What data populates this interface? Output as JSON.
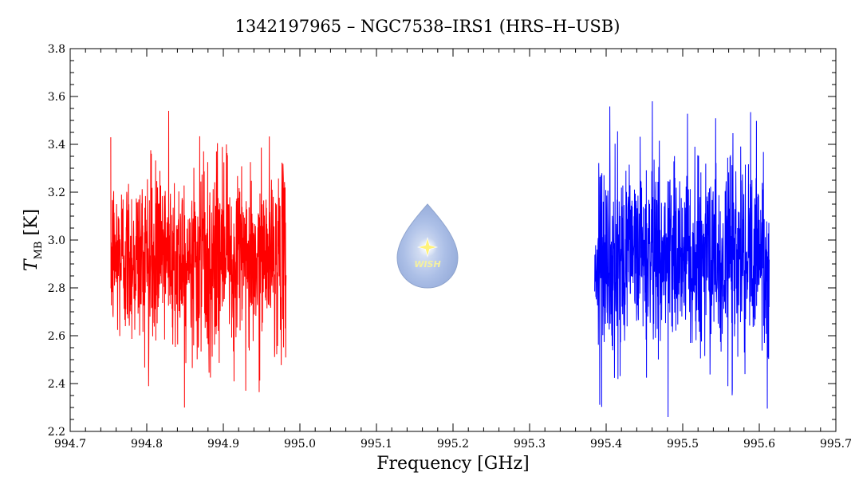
{
  "chart_data": {
    "type": "line",
    "title": "1342197965 – NGC7538–IRS1 (HRS–H–USB)",
    "xlabel": "Frequency [GHz]",
    "ylabel": {
      "main": "T",
      "sub": "MB",
      "unit": "[K]"
    },
    "xlim": [
      994.7,
      995.7
    ],
    "ylim": [
      2.2,
      3.8
    ],
    "xticks": [
      "994.7",
      "994.8",
      "994.9",
      "995.0",
      "995.1",
      "995.2",
      "995.3",
      "995.4",
      "995.5",
      "995.6",
      "995.7"
    ],
    "yticks": [
      "2.2",
      "2.4",
      "2.6",
      "2.8",
      "3.0",
      "3.2",
      "3.4",
      "3.6",
      "3.8"
    ],
    "grid": false,
    "series": [
      {
        "color": "#ff0000",
        "x_range": [
          994.753,
          994.982
        ],
        "mean": 2.93,
        "min": 2.3,
        "max": 3.54,
        "sigma": 0.18,
        "points": 900
      },
      {
        "color": "#0000ff",
        "x_range": [
          995.385,
          995.613
        ],
        "mean": 2.92,
        "min": 2.26,
        "max": 3.58,
        "sigma": 0.2,
        "points": 900
      }
    ],
    "logo": {
      "text": "WISH",
      "icon": "water-drop-star-icon"
    }
  }
}
